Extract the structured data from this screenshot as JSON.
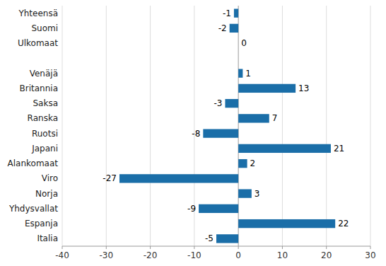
{
  "chart_data": {
    "type": "bar",
    "orientation": "horizontal",
    "categories": [
      "Yhteensä",
      "Suomi",
      "Ulkomaat",
      null,
      "Venäjä",
      "Britannia",
      "Saksa",
      "Ranska",
      "Ruotsi",
      "Japani",
      "Alankomaat",
      "Viro",
      "Norja",
      "Yhdysvallat",
      "Espanja",
      "Italia"
    ],
    "values": [
      -1,
      -2,
      0,
      null,
      1,
      13,
      -3,
      7,
      -8,
      21,
      2,
      -27,
      3,
      -9,
      22,
      -5
    ],
    "color": "#1a6ea8",
    "xlim": [
      -40,
      30
    ],
    "xticks": [
      -40,
      -30,
      -20,
      -10,
      0,
      10,
      20,
      30
    ],
    "grid": true,
    "data_labels": true
  }
}
